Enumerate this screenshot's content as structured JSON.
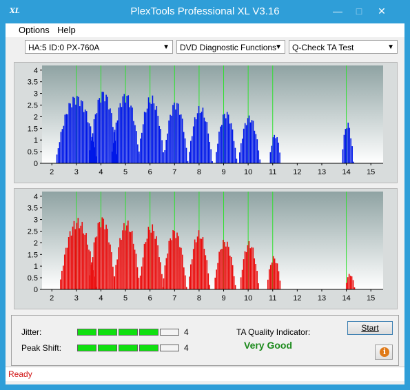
{
  "window": {
    "title": "PlexTools Professional XL V3.16",
    "icon": "XL",
    "minimize": "—",
    "maximize": "□",
    "close": "✕"
  },
  "menu": [
    "Options",
    "Help"
  ],
  "toolbar": {
    "drive": "HA:5 ID:0  PX-760A",
    "function": "DVD Diagnostic Functions",
    "test": "Q-Check TA Test"
  },
  "colors": {
    "top_bars": "#0018e8",
    "bottom_bars": "#ea0a0a",
    "peak_lines": "#30e030",
    "indicator_on": "#10e010",
    "quality": "#1b8a1b",
    "status": "#d01010"
  },
  "chart_data": [
    {
      "type": "bar",
      "x_ticks": [
        "2",
        "3",
        "4",
        "5",
        "6",
        "7",
        "8",
        "9",
        "10",
        "11",
        "12",
        "13",
        "14",
        "15"
      ],
      "y_ticks": [
        "0",
        "0.5",
        "1",
        "1.5",
        "2",
        "2.5",
        "3",
        "3.5",
        "4"
      ],
      "ylim": [
        0,
        4.2
      ],
      "xlim": [
        1.6,
        15.5
      ],
      "peak_lines": [
        3,
        4,
        5,
        6,
        7,
        8,
        9,
        10,
        11,
        14
      ],
      "groups": [
        {
          "center": 3.0,
          "height": 3.0,
          "halfwidth": 0.85
        },
        {
          "center": 4.1,
          "height": 3.2,
          "halfwidth": 0.6
        },
        {
          "center": 5.0,
          "height": 3.1,
          "halfwidth": 0.6
        },
        {
          "center": 6.05,
          "height": 2.95,
          "halfwidth": 0.55
        },
        {
          "center": 7.05,
          "height": 2.75,
          "halfwidth": 0.5
        },
        {
          "center": 8.05,
          "height": 2.5,
          "halfwidth": 0.5
        },
        {
          "center": 9.1,
          "height": 2.3,
          "halfwidth": 0.45
        },
        {
          "center": 10.05,
          "height": 2.1,
          "halfwidth": 0.45
        },
        {
          "center": 11.1,
          "height": 1.3,
          "halfwidth": 0.25
        },
        {
          "center": 14.05,
          "height": 1.8,
          "halfwidth": 0.25
        }
      ]
    },
    {
      "type": "bar",
      "x_ticks": [
        "2",
        "3",
        "4",
        "5",
        "6",
        "7",
        "8",
        "9",
        "10",
        "11",
        "12",
        "13",
        "14",
        "15"
      ],
      "y_ticks": [
        "0",
        "0.5",
        "1",
        "1.5",
        "2",
        "2.5",
        "3",
        "3.5",
        "4"
      ],
      "ylim": [
        0,
        4.2
      ],
      "xlim": [
        1.6,
        15.5
      ],
      "peak_lines": [
        3,
        4,
        5,
        6,
        7,
        8,
        9,
        10,
        11,
        14
      ],
      "groups": [
        {
          "center": 3.05,
          "height": 3.1,
          "halfwidth": 0.75
        },
        {
          "center": 4.05,
          "height": 3.2,
          "halfwidth": 0.55
        },
        {
          "center": 5.05,
          "height": 3.0,
          "halfwidth": 0.55
        },
        {
          "center": 6.05,
          "height": 2.85,
          "halfwidth": 0.5
        },
        {
          "center": 7.0,
          "height": 2.65,
          "halfwidth": 0.5
        },
        {
          "center": 8.0,
          "height": 2.55,
          "halfwidth": 0.45
        },
        {
          "center": 9.05,
          "height": 2.2,
          "halfwidth": 0.45
        },
        {
          "center": 10.05,
          "height": 2.1,
          "halfwidth": 0.4
        },
        {
          "center": 11.05,
          "height": 1.45,
          "halfwidth": 0.3
        },
        {
          "center": 14.15,
          "height": 0.7,
          "halfwidth": 0.2
        }
      ]
    }
  ],
  "metrics": {
    "jitter_label": "Jitter:",
    "jitter_value": "4",
    "jitter_level": 4,
    "peak_label": "Peak Shift:",
    "peak_value": "4",
    "peak_level": 4,
    "segments": 5,
    "ta_label": "TA Quality Indicator:",
    "quality": "Very Good",
    "start": "Start",
    "info_icon": "i"
  },
  "status": "Ready"
}
